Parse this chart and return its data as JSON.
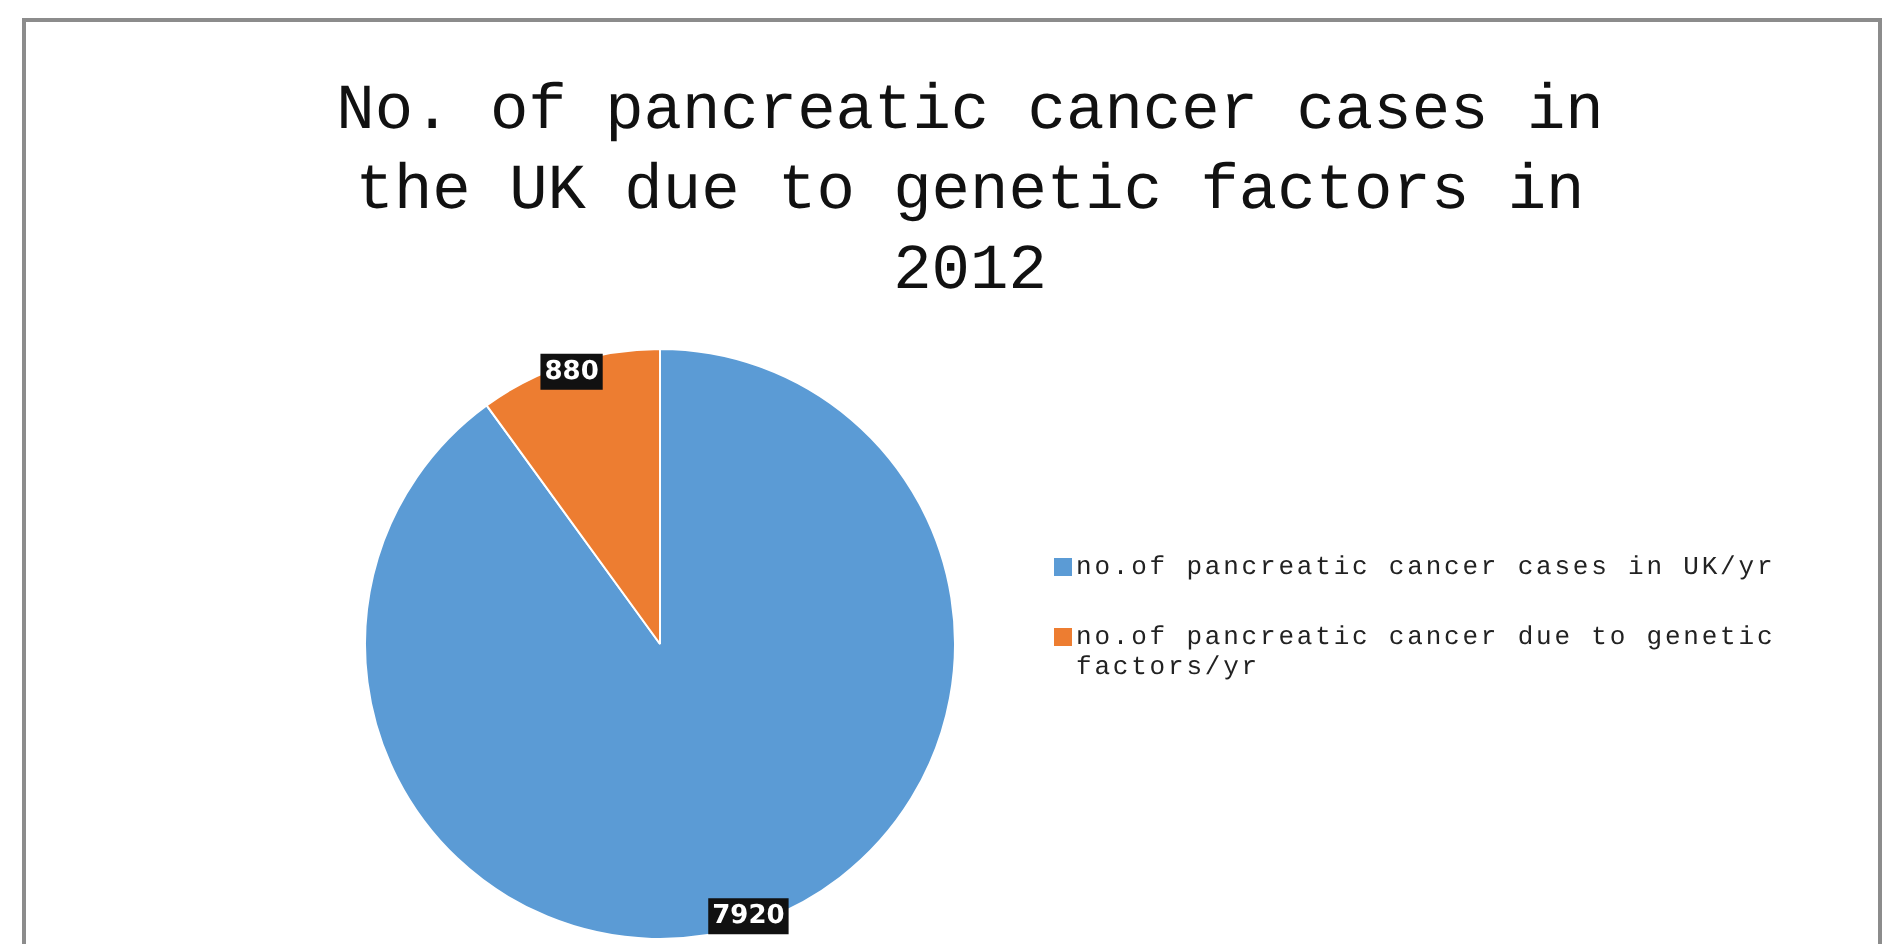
{
  "chart_data": {
    "type": "pie",
    "title": "No. of pancreatic cancer cases in the UK due to genetic factors in 2012",
    "categories": [
      "no.of pancreatic cancer cases in UK/yr",
      "no.of pancreatic cancer due to genetic factors/yr"
    ],
    "values": [
      7920,
      880
    ],
    "colors": [
      "#5b9bd5",
      "#ed7d31"
    ],
    "data_labels": true,
    "legend": "right"
  }
}
